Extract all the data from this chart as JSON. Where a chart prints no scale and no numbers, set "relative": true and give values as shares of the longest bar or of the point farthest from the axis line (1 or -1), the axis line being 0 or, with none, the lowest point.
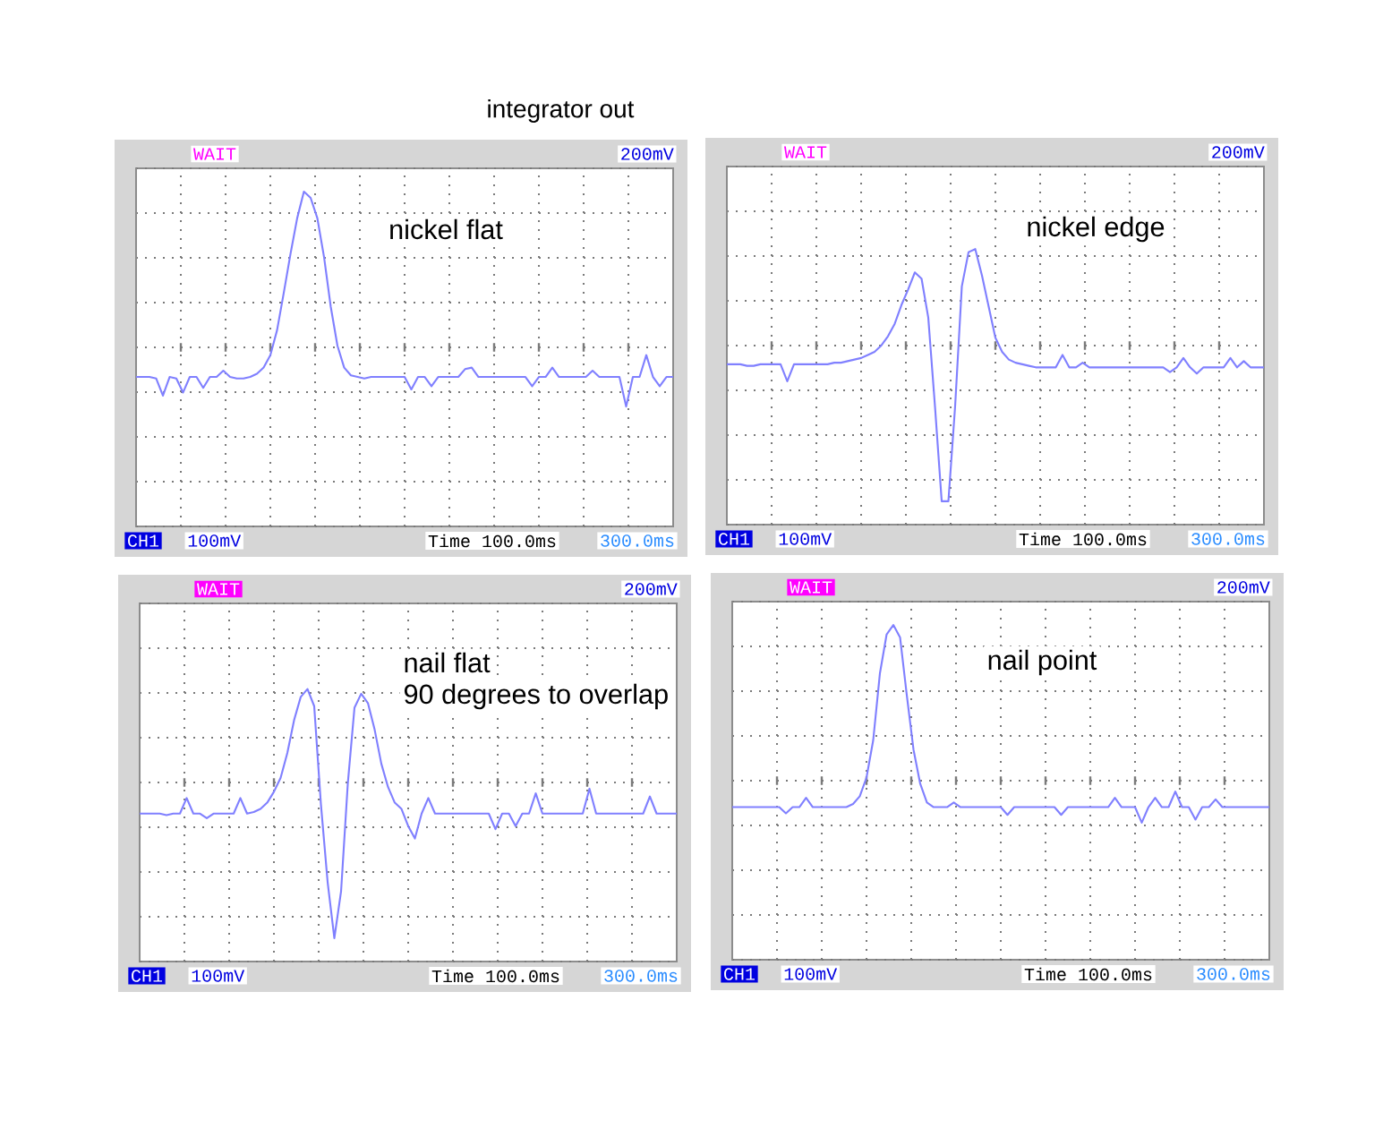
{
  "chart_data": [
    {
      "type": "line",
      "title": "nickel flat",
      "relative": true,
      "grid": true,
      "color": "#8080ff",
      "categories": [
        null,
        null,
        null,
        null,
        null,
        null,
        null,
        null,
        null,
        null,
        null,
        null,
        null,
        null,
        null,
        null,
        null,
        null,
        null,
        null,
        null,
        null,
        null,
        null,
        null,
        null,
        null,
        null,
        null,
        null,
        null,
        null,
        null,
        null,
        null,
        null,
        null,
        null,
        null,
        null,
        null,
        null,
        null,
        null,
        null,
        null,
        null,
        null,
        null,
        null,
        null,
        null,
        null,
        null,
        null,
        null,
        null,
        null,
        null,
        null,
        null,
        null,
        null,
        null,
        null,
        null,
        null,
        null,
        null,
        null,
        null,
        null,
        null,
        null,
        null,
        null,
        null,
        null,
        null,
        null,
        null
      ],
      "values": [
        -0.19,
        -0.19,
        -0.19,
        -0.2,
        -0.31,
        -0.19,
        -0.2,
        -0.29,
        -0.19,
        -0.19,
        -0.26,
        -0.19,
        -0.19,
        -0.15,
        -0.19,
        -0.2,
        -0.2,
        -0.19,
        -0.17,
        -0.13,
        -0.05,
        0.11,
        0.35,
        0.6,
        0.83,
        1,
        0.96,
        0.83,
        0.58,
        0.26,
        0.01,
        -0.13,
        -0.18,
        -0.19,
        -0.2,
        -0.19,
        -0.19,
        -0.19,
        -0.19,
        -0.19,
        -0.19,
        -0.27,
        -0.19,
        -0.19,
        -0.25,
        -0.19,
        -0.19,
        -0.19,
        -0.19,
        -0.14,
        -0.13,
        -0.19,
        -0.19,
        -0.19,
        -0.19,
        -0.19,
        -0.19,
        -0.19,
        -0.19,
        -0.25,
        -0.19,
        -0.19,
        -0.13,
        -0.19,
        -0.19,
        -0.19,
        -0.19,
        -0.19,
        -0.15,
        -0.19,
        -0.19,
        -0.19,
        -0.19,
        -0.38,
        -0.19,
        -0.19,
        -0.05,
        -0.19,
        -0.25,
        -0.19,
        -0.19
      ],
      "annotations": [
        "WAIT",
        "200mV",
        "CH1",
        "100mV",
        "Time 100.0ms",
        "300.0ms",
        "integrator out"
      ]
    },
    {
      "type": "line",
      "title": "nickel edge",
      "relative": true,
      "grid": true,
      "color": "#8080ff",
      "categories": [
        null,
        null,
        null,
        null,
        null,
        null,
        null,
        null,
        null,
        null,
        null,
        null,
        null,
        null,
        null,
        null,
        null,
        null,
        null,
        null,
        null,
        null,
        null,
        null,
        null,
        null,
        null,
        null,
        null,
        null,
        null,
        null,
        null,
        null,
        null,
        null,
        null,
        null,
        null,
        null,
        null,
        null,
        null,
        null,
        null,
        null,
        null,
        null,
        null,
        null,
        null,
        null,
        null,
        null,
        null,
        null,
        null,
        null,
        null,
        null,
        null,
        null,
        null,
        null,
        null,
        null,
        null,
        null,
        null,
        null,
        null,
        null,
        null,
        null,
        null,
        null,
        null,
        null,
        null,
        null,
        null
      ],
      "values": [
        -0.12,
        -0.12,
        -0.12,
        -0.13,
        -0.13,
        -0.12,
        -0.12,
        -0.12,
        -0.12,
        -0.23,
        -0.12,
        -0.12,
        -0.12,
        -0.12,
        -0.12,
        -0.12,
        -0.11,
        -0.11,
        -0.1,
        -0.09,
        -0.08,
        -0.06,
        -0.04,
        0,
        0.06,
        0.14,
        0.26,
        0.36,
        0.47,
        0.43,
        0.18,
        -0.39,
        -1,
        -1,
        -0.39,
        0.38,
        0.6,
        0.62,
        0.45,
        0.25,
        0.05,
        -0.04,
        -0.09,
        -0.11,
        -0.12,
        -0.13,
        -0.14,
        -0.14,
        -0.14,
        -0.14,
        -0.06,
        -0.14,
        -0.14,
        -0.11,
        -0.14,
        -0.14,
        -0.14,
        -0.14,
        -0.14,
        -0.14,
        -0.14,
        -0.14,
        -0.14,
        -0.14,
        -0.14,
        -0.14,
        -0.17,
        -0.14,
        -0.08,
        -0.14,
        -0.18,
        -0.14,
        -0.14,
        -0.14,
        -0.14,
        -0.08,
        -0.14,
        -0.1,
        -0.14,
        -0.14,
        -0.14
      ],
      "annotations": [
        "WAIT",
        "200mV",
        "CH1",
        "100mV",
        "Time 100.0ms",
        "300.0ms"
      ]
    },
    {
      "type": "line",
      "title": "nail flat",
      "subtitle": "90 degrees to overlap",
      "relative": true,
      "grid": true,
      "color": "#8080ff",
      "categories": [
        null,
        null,
        null,
        null,
        null,
        null,
        null,
        null,
        null,
        null,
        null,
        null,
        null,
        null,
        null,
        null,
        null,
        null,
        null,
        null,
        null,
        null,
        null,
        null,
        null,
        null,
        null,
        null,
        null,
        null,
        null,
        null,
        null,
        null,
        null,
        null,
        null,
        null,
        null,
        null,
        null,
        null,
        null,
        null,
        null,
        null,
        null,
        null,
        null,
        null,
        null,
        null,
        null,
        null,
        null,
        null,
        null,
        null,
        null,
        null,
        null,
        null,
        null,
        null,
        null,
        null,
        null,
        null,
        null,
        null,
        null,
        null,
        null,
        null,
        null,
        null,
        null,
        null,
        null,
        null,
        null
      ],
      "values": [
        -0.2,
        -0.2,
        -0.2,
        -0.2,
        -0.21,
        -0.2,
        -0.2,
        -0.1,
        -0.2,
        -0.2,
        -0.23,
        -0.2,
        -0.2,
        -0.2,
        -0.2,
        -0.1,
        -0.2,
        -0.19,
        -0.17,
        -0.13,
        -0.06,
        0.03,
        0.19,
        0.4,
        0.55,
        0.6,
        0.49,
        -0.14,
        -0.64,
        -1,
        -0.7,
        -0.01,
        0.48,
        0.57,
        0.51,
        0.34,
        0.12,
        -0.03,
        -0.13,
        -0.17,
        -0.28,
        -0.36,
        -0.2,
        -0.1,
        -0.2,
        -0.2,
        -0.2,
        -0.2,
        -0.2,
        -0.2,
        -0.2,
        -0.2,
        -0.2,
        -0.3,
        -0.2,
        -0.2,
        -0.28,
        -0.2,
        -0.2,
        -0.07,
        -0.2,
        -0.2,
        -0.2,
        -0.2,
        -0.2,
        -0.2,
        -0.2,
        -0.04,
        -0.2,
        -0.2,
        -0.2,
        -0.2,
        -0.2,
        -0.2,
        -0.2,
        -0.2,
        -0.09,
        -0.2,
        -0.2,
        -0.2,
        -0.2
      ],
      "annotations": [
        "WAIT",
        "200mV",
        "CH1",
        "100mV",
        "Time 100.0ms",
        "300.0ms"
      ]
    },
    {
      "type": "line",
      "title": "nail point",
      "relative": true,
      "grid": true,
      "color": "#8080ff",
      "categories": [
        null,
        null,
        null,
        null,
        null,
        null,
        null,
        null,
        null,
        null,
        null,
        null,
        null,
        null,
        null,
        null,
        null,
        null,
        null,
        null,
        null,
        null,
        null,
        null,
        null,
        null,
        null,
        null,
        null,
        null,
        null,
        null,
        null,
        null,
        null,
        null,
        null,
        null,
        null,
        null,
        null,
        null,
        null,
        null,
        null,
        null,
        null,
        null,
        null,
        null,
        null,
        null,
        null,
        null,
        null,
        null,
        null,
        null,
        null,
        null,
        null,
        null,
        null,
        null,
        null,
        null,
        null,
        null,
        null,
        null,
        null,
        null,
        null,
        null,
        null,
        null,
        null,
        null,
        null,
        null,
        null
      ],
      "values": [
        -0.17,
        -0.17,
        -0.17,
        -0.17,
        -0.17,
        -0.17,
        -0.17,
        -0.17,
        -0.21,
        -0.17,
        -0.17,
        -0.11,
        -0.17,
        -0.17,
        -0.17,
        -0.17,
        -0.17,
        -0.17,
        -0.15,
        -0.1,
        0.02,
        0.26,
        0.69,
        0.94,
        1,
        0.92,
        0.55,
        0.2,
        -0.02,
        -0.14,
        -0.17,
        -0.17,
        -0.17,
        -0.14,
        -0.17,
        -0.17,
        -0.17,
        -0.17,
        -0.17,
        -0.17,
        -0.17,
        -0.22,
        -0.17,
        -0.17,
        -0.17,
        -0.17,
        -0.17,
        -0.17,
        -0.17,
        -0.22,
        -0.17,
        -0.17,
        -0.17,
        -0.17,
        -0.17,
        -0.17,
        -0.17,
        -0.11,
        -0.17,
        -0.17,
        -0.17,
        -0.27,
        -0.17,
        -0.11,
        -0.17,
        -0.17,
        -0.07,
        -0.17,
        -0.17,
        -0.25,
        -0.17,
        -0.17,
        -0.12,
        -0.17,
        -0.17,
        -0.17,
        -0.17,
        -0.17,
        -0.17,
        -0.17,
        -0.17
      ],
      "annotations": [
        "WAIT",
        "200mV",
        "CH1",
        "100mV",
        "Time 100.0ms",
        "300.0ms"
      ]
    }
  ]
}
